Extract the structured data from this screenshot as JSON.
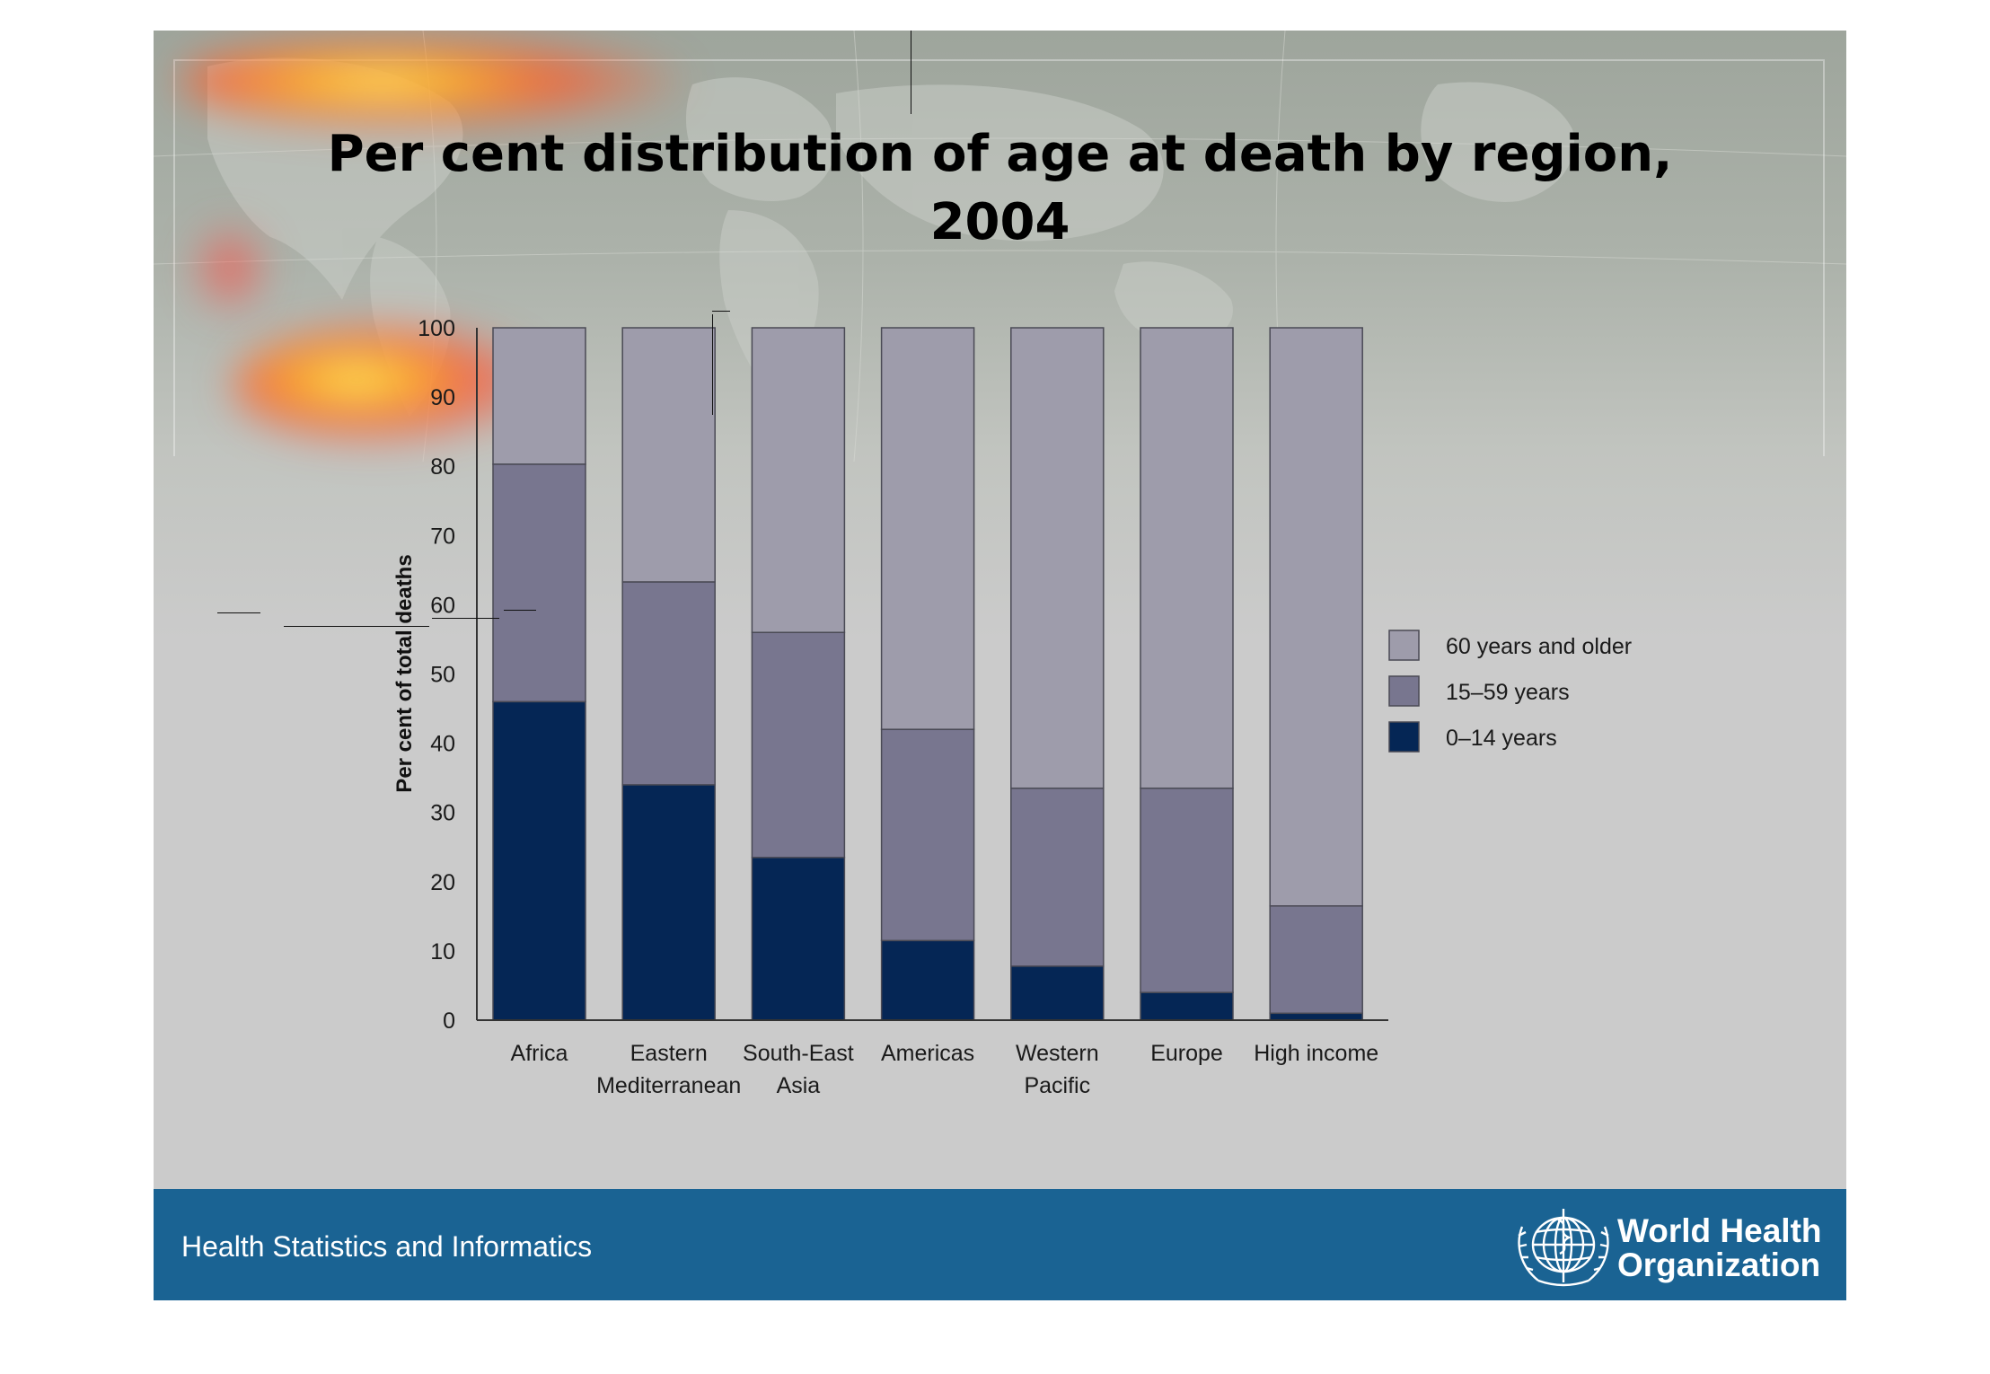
{
  "title": {
    "line1": "Per cent distribution of age at death by region,",
    "line2": "2004"
  },
  "footer": {
    "left_text": "Health Statistics and Informatics",
    "org_name_line1": "World Health",
    "org_name_line2": "Organization",
    "logo_icon": "who-emblem-icon"
  },
  "colors": {
    "age_60_plus": "#9e9cab",
    "age_15_59": "#78768f",
    "age_0_14": "#052655",
    "footer_bg": "#1a6393"
  },
  "chart_data": {
    "type": "bar",
    "stacked": true,
    "title": "Per cent distribution of age at death by region, 2004",
    "xlabel": "",
    "ylabel": "Per cent of total deaths",
    "ylim": [
      0,
      100
    ],
    "yticks": [
      "0",
      "10",
      "20",
      "30",
      "40",
      "50",
      "60",
      "70",
      "80",
      "90",
      "100"
    ],
    "categories": [
      [
        "Africa"
      ],
      [
        "Eastern",
        "Mediterranean"
      ],
      [
        "South-East",
        "Asia"
      ],
      [
        "Americas"
      ],
      [
        "Western",
        "Pacific"
      ],
      [
        "Europe"
      ],
      [
        "High income"
      ]
    ],
    "series": [
      {
        "name": "0–14 years",
        "values": [
          46,
          34,
          23.5,
          11.5,
          7.8,
          4,
          1
        ]
      },
      {
        "name": "15–59 years",
        "values": [
          34.3,
          29.3,
          32.5,
          30.5,
          25.7,
          29.5,
          15.5
        ]
      },
      {
        "name": "60 years and older",
        "values": [
          19.7,
          36.7,
          44,
          58,
          66.5,
          66.5,
          83.5
        ]
      }
    ],
    "legend": {
      "placement": "right",
      "order": [
        "60 years and older",
        "15–59 years",
        "0–14 years"
      ]
    },
    "grid": false
  }
}
